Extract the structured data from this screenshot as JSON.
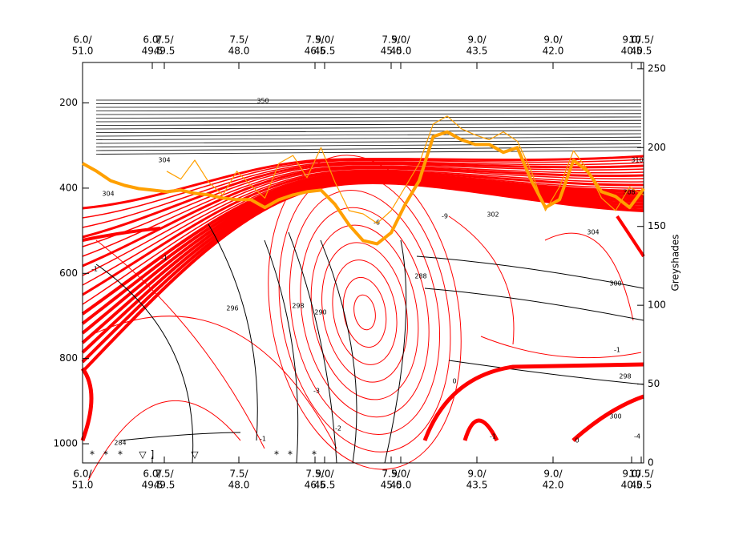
{
  "chart_data": {
    "type": "line",
    "y_label": "Greyshades",
    "ylim": [
      1045,
      105
    ],
    "yticks": [
      200,
      400,
      600,
      800,
      1000
    ],
    "y2lim": [
      0,
      254
    ],
    "y2ticks": [
      0,
      50,
      100,
      150,
      200,
      250
    ],
    "x_labels": [
      [
        "6.0/",
        "51.0"
      ],
      [
        "6.0/",
        "49.5"
      ],
      [
        "7.5/",
        "49.5"
      ],
      [
        "7.5/",
        "48.0"
      ],
      [
        "7.5/",
        "46.5"
      ],
      [
        "9.0/",
        "46.5"
      ],
      [
        "7.5/",
        "45.0"
      ],
      [
        "9.0/",
        "45.0"
      ],
      [
        "9.0/",
        "43.5"
      ],
      [
        "9.0/",
        "42.0"
      ],
      [
        "9.0/",
        "40.5"
      ],
      [
        "10.5/",
        "40.5"
      ]
    ],
    "series": [
      {
        "color": "#ffa000",
        "axis": "y2",
        "values": [
          190,
          185,
          179,
          176,
          174,
          173,
          172,
          173,
          171,
          170,
          168,
          167,
          167,
          162,
          167,
          170,
          172,
          173,
          164,
          151,
          141,
          139,
          146,
          164,
          179,
          207,
          210,
          205,
          202,
          202,
          197,
          200,
          179,
          162,
          167,
          192,
          185,
          172,
          169,
          162,
          174
        ]
      },
      {
        "color": "#ffa000",
        "axis": "y2",
        "values": [
          null,
          null,
          null,
          null,
          null,
          null,
          185,
          180,
          192,
          178,
          170,
          185,
          176,
          168,
          190,
          195,
          181,
          200,
          178,
          160,
          158,
          152,
          160,
          175,
          190,
          215,
          220,
          212,
          208,
          205,
          210,
          204,
          185,
          160,
          175,
          198,
          186,
          168,
          160,
          175,
          170
        ]
      }
    ],
    "contour_labels": [
      "350",
      "304",
      "304",
      "-1",
      "-1",
      "296",
      "298",
      "290",
      "288",
      "-3",
      "-2",
      "-1",
      "284",
      "-6",
      "-9",
      "302",
      "304",
      "308",
      "310",
      "300",
      "298",
      "300",
      "-1",
      "0",
      "0",
      "-1",
      "-4"
    ],
    "weather_symbols": [
      "*",
      "*",
      "*",
      "▽",
      "]",
      "▽",
      "*",
      "*",
      "*"
    ]
  }
}
